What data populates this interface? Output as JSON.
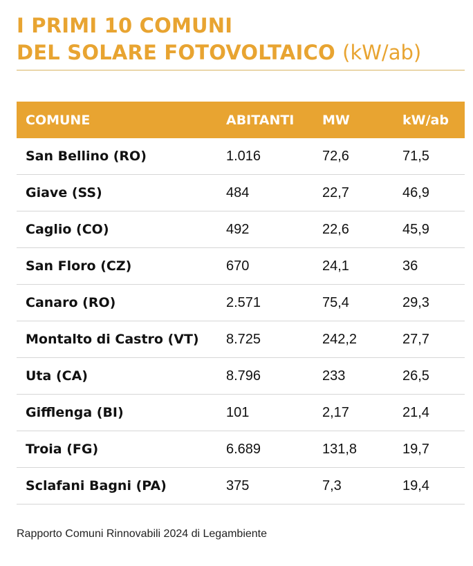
{
  "title": {
    "line1": "I PRIMI 10 COMUNI",
    "line2": "DEL SOLARE FOTOVOLTAICO",
    "unit": "(kW/ab)"
  },
  "table": {
    "headers": [
      "COMUNE",
      "ABITANTI",
      "MW",
      "kW/ab"
    ],
    "rows": [
      [
        "San Bellino (RO)",
        "1.016",
        "72,6",
        "71,5"
      ],
      [
        "Giave (SS)",
        "484",
        "22,7",
        "46,9"
      ],
      [
        "Caglio (CO)",
        "492",
        "22,6",
        "45,9"
      ],
      [
        "San Floro (CZ)",
        "670",
        "24,1",
        "36"
      ],
      [
        "Canaro (RO)",
        "2.571",
        "75,4",
        "29,3"
      ],
      [
        "Montalto di Castro (VT)",
        "8.725",
        "242,2",
        "27,7"
      ],
      [
        "Uta (CA)",
        "8.796",
        "233",
        "26,5"
      ],
      [
        "Gifflenga (BI)",
        "101",
        "2,17",
        "21,4"
      ],
      [
        "Troia (FG)",
        "6.689",
        "131,8",
        "19,7"
      ],
      [
        "Sclafani Bagni (PA)",
        "375",
        "7,3",
        "19,4"
      ]
    ]
  },
  "source": "Rapporto Comuni Rinnovabili 2024 di Legambiente",
  "colors": {
    "accent": "#e8a431",
    "header_text": "#ffffff",
    "row_divider": "#d6d6d6"
  }
}
